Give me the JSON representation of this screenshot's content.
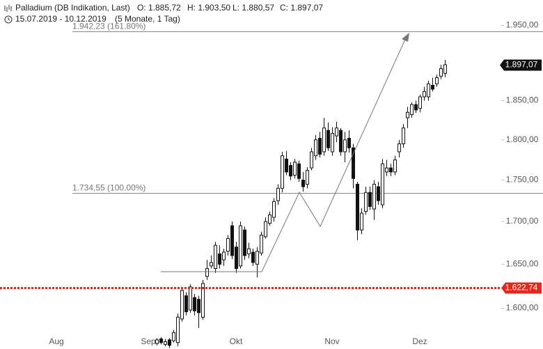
{
  "header": {
    "instrument": "Palladium (DB Indikation, Last)",
    "open": "O: 1.885,72",
    "high": "H: 1.903,50",
    "low": "L: 1.880,57",
    "close": "C: 1.897,07",
    "range": "15.07.2019 - 10.12.2019",
    "duration": "(5 Monate, 1 Tag)"
  },
  "chart_data": {
    "type": "candlestick",
    "log_scale": true,
    "ylim": [
      1555,
      1985
    ],
    "yticks": [
      {
        "value": 1600,
        "label": "1.600,00"
      },
      {
        "value": 1650,
        "label": "1.650,00"
      },
      {
        "value": 1700,
        "label": "1.700,00"
      },
      {
        "value": 1750,
        "label": "1.750,00"
      },
      {
        "value": 1800,
        "label": "1.800,00"
      },
      {
        "value": 1850,
        "label": "1.850,00"
      },
      {
        "value": 1950,
        "label": "1.950,00"
      }
    ],
    "categories": [
      null,
      null,
      null,
      null,
      null,
      null,
      null,
      null,
      null,
      null,
      null,
      null,
      null,
      "Aug",
      null,
      null,
      null,
      null,
      null,
      null,
      null,
      null,
      null,
      null,
      null,
      null,
      null,
      null,
      null,
      null,
      null,
      null,
      null,
      null,
      null,
      "Sep",
      null,
      null,
      null,
      null,
      null,
      null,
      null,
      null,
      null,
      null,
      null,
      null,
      null,
      null,
      null,
      null,
      null,
      null,
      null,
      null,
      "Okt",
      null,
      null,
      null,
      null,
      null,
      null,
      null,
      null,
      null,
      null,
      null,
      null,
      null,
      null,
      null,
      null,
      null,
      null,
      null,
      null,
      null,
      null,
      "Nov",
      null,
      null,
      null,
      null,
      null,
      null,
      null,
      null,
      null,
      null,
      null,
      null,
      null,
      null,
      null,
      null,
      null,
      null,
      null,
      null,
      "Dez",
      null,
      null,
      null,
      null,
      null,
      null,
      null
    ],
    "open": [
      null,
      null,
      null,
      null,
      null,
      null,
      null,
      null,
      null,
      null,
      null,
      null,
      null,
      null,
      null,
      null,
      null,
      null,
      null,
      null,
      null,
      null,
      null,
      null,
      null,
      null,
      null,
      null,
      null,
      null,
      null,
      null,
      null,
      null,
      null,
      null,
      null,
      null,
      1561,
      1566,
      1560,
      1565,
      1564,
      1562,
      1588,
      1614,
      1598,
      1612,
      1610,
      1590,
      1636,
      1648,
      1645,
      1662,
      1655,
      1665,
      1695,
      1670,
      1648,
      1690,
      1662,
      1664,
      1650,
      1663,
      1682,
      1698,
      1705,
      1725,
      1740,
      1776,
      1768,
      1756,
      1770,
      1750,
      1745,
      1765,
      1780,
      1802,
      1785,
      1812,
      1785,
      1805,
      1812,
      1785,
      1802,
      1790,
      1745,
      1690,
      1712,
      1735,
      1715,
      1742,
      1720,
      1760,
      1765,
      1760,
      1785,
      1795,
      1828,
      1832,
      1845,
      1840,
      1855,
      1855,
      1870,
      1872,
      1882,
      1885.72
    ],
    "high": [
      null,
      null,
      null,
      null,
      null,
      null,
      null,
      null,
      null,
      null,
      null,
      null,
      null,
      null,
      null,
      null,
      null,
      null,
      null,
      null,
      null,
      null,
      null,
      null,
      null,
      null,
      null,
      null,
      null,
      null,
      null,
      null,
      null,
      null,
      null,
      null,
      null,
      null,
      1567,
      1568,
      1566,
      1567,
      1576,
      1594,
      1624,
      1618,
      1627,
      1616,
      1614,
      1632,
      1655,
      1660,
      1676,
      1672,
      1668,
      1684,
      1700,
      1676,
      1700,
      1694,
      1675,
      1668,
      1670,
      1688,
      1705,
      1712,
      1728,
      1745,
      1785,
      1786,
      1772,
      1776,
      1774,
      1760,
      1766,
      1790,
      1806,
      1810,
      1828,
      1822,
      1816,
      1823,
      1815,
      1810,
      1812,
      1795,
      1748,
      1716,
      1742,
      1742,
      1750,
      1748,
      1776,
      1775,
      1770,
      1780,
      1800,
      1820,
      1842,
      1848,
      1850,
      1858,
      1868,
      1876,
      1880,
      1884,
      1897,
      1903.5
    ],
    "low": [
      null,
      null,
      null,
      null,
      null,
      null,
      null,
      null,
      null,
      null,
      null,
      null,
      null,
      null,
      null,
      null,
      null,
      null,
      null,
      null,
      null,
      null,
      null,
      null,
      null,
      null,
      null,
      null,
      null,
      null,
      null,
      null,
      null,
      null,
      null,
      null,
      null,
      null,
      1559,
      1560,
      1558,
      1556,
      1562,
      1558,
      1585,
      1592,
      1595,
      1592,
      1578,
      1587,
      1632,
      1645,
      1640,
      1645,
      1648,
      1660,
      1656,
      1640,
      1645,
      1655,
      1657,
      1648,
      1635,
      1660,
      1680,
      1695,
      1700,
      1720,
      1735,
      1756,
      1750,
      1752,
      1748,
      1736,
      1740,
      1762,
      1775,
      1778,
      1780,
      1786,
      1780,
      1797,
      1780,
      1772,
      1784,
      1740,
      1678,
      1685,
      1708,
      1714,
      1702,
      1720,
      1716,
      1755,
      1755,
      1756,
      1778,
      1790,
      1815,
      1828,
      1834,
      1835,
      1850,
      1850,
      1862,
      1868,
      1878,
      1880.57
    ],
    "close": [
      null,
      null,
      null,
      null,
      null,
      null,
      null,
      null,
      null,
      null,
      null,
      null,
      null,
      null,
      null,
      null,
      null,
      null,
      null,
      null,
      null,
      null,
      null,
      null,
      null,
      null,
      null,
      null,
      null,
      null,
      null,
      null,
      null,
      null,
      null,
      null,
      null,
      null,
      1565,
      1562,
      1563,
      1559,
      1573,
      1590,
      1620,
      1596,
      1624,
      1597,
      1595,
      1628,
      1645,
      1652,
      1672,
      1650,
      1664,
      1680,
      1660,
      1645,
      1695,
      1660,
      1668,
      1652,
      1665,
      1684,
      1700,
      1708,
      1724,
      1740,
      1780,
      1760,
      1755,
      1772,
      1752,
      1742,
      1762,
      1785,
      1800,
      1782,
      1815,
      1790,
      1808,
      1815,
      1785,
      1800,
      1790,
      1752,
      1690,
      1710,
      1735,
      1718,
      1745,
      1725,
      1770,
      1765,
      1760,
      1775,
      1795,
      1815,
      1835,
      1845,
      1838,
      1855,
      1862,
      1872,
      1865,
      1880,
      1892,
      1897.07
    ],
    "levels": [
      {
        "value": 1942.23,
        "label": "1.942,23 (161.80%)"
      },
      {
        "value": 1734.55,
        "label": "1.734,55 (100.00%)"
      }
    ],
    "alert_line": {
      "value": 1622.74,
      "label": "1.622,74",
      "color": "#e8271b"
    },
    "last_price": {
      "value": 1897.07,
      "label": "1.897,07"
    }
  }
}
